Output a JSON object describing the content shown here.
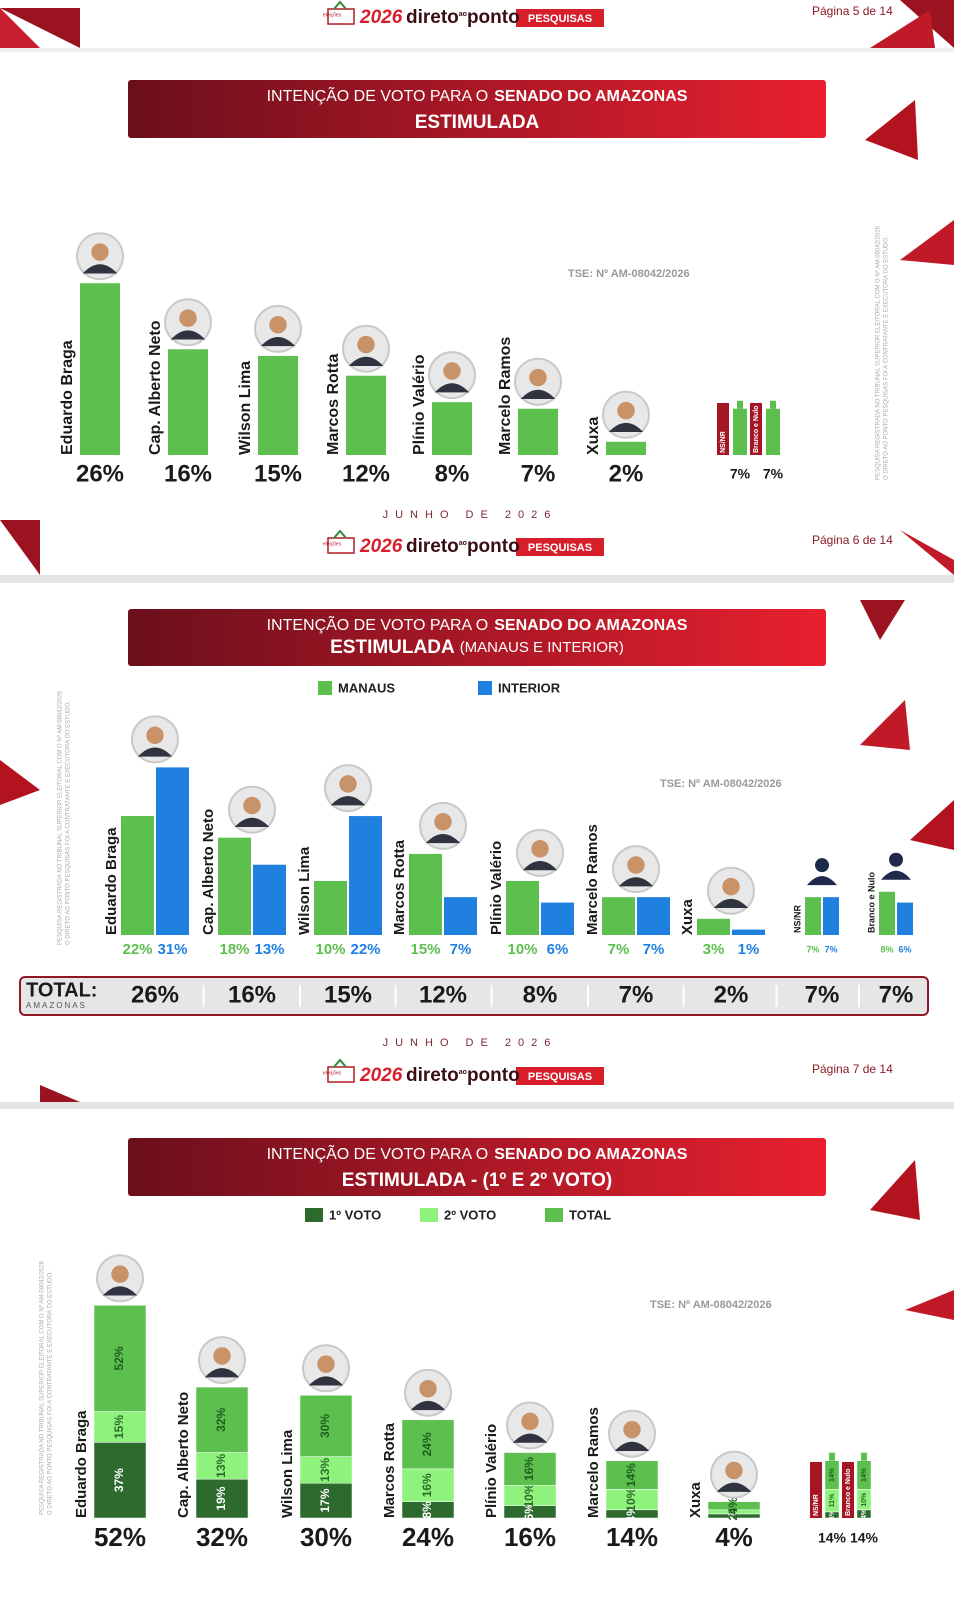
{
  "logo": {
    "badge": "eleições",
    "year": "2026",
    "name_a": "direto",
    "name_b": "ao",
    "name_c": "ponto",
    "tag": "PESQUISAS"
  },
  "page_labels": [
    "Página 5 de 14",
    "Página 6 de 14",
    "Página 7 de 14"
  ],
  "date": "JUNHO DE 2026",
  "registration": "TSE: Nº AM-08042/2026",
  "side_note": [
    "PESQUISA REGISTRADA NO TRIBUNAL SUPERIOR ELEITORAL COM O Nº AM-08042/2026",
    "O DIRETO AO PONTO PESQUISAS FOI A CONTRATANTE E EXECUTORA DO ESTUDO."
  ],
  "chart_data": [
    {
      "type": "bar",
      "title": {
        "lead": "INTENÇÃO DE VOTO PARA O",
        "bold": "SENADO DO AMAZONAS"
      },
      "subtitle": "ESTIMULADA",
      "categories": [
        "Eduardo Braga",
        "Cap. Alberto Neto",
        "Wilson Lima",
        "Marcos Rotta",
        "Plínio Valério",
        "Marcelo Ramos",
        "Xuxa",
        "NS/NR",
        "Branco e Nulo"
      ],
      "values": [
        26,
        16,
        15,
        12,
        8,
        7,
        2,
        7,
        7
      ],
      "value_labels": [
        "26%",
        "16%",
        "15%",
        "12%",
        "8%",
        "7%",
        "2%",
        "7%",
        "7%"
      ],
      "color": "#5cbf4e",
      "ylim": [
        0,
        28
      ]
    },
    {
      "type": "grouped_bar",
      "title": {
        "lead": "INTENÇÃO DE VOTO PARA O",
        "bold": "SENADO DO AMAZONAS"
      },
      "subtitle": "ESTIMULADA",
      "subtitle_note": "(MANAUS E INTERIOR)",
      "categories": [
        "Eduardo Braga",
        "Cap. Alberto Neto",
        "Wilson Lima",
        "Marcos Rotta",
        "Plínio Valério",
        "Marcelo Ramos",
        "Xuxa",
        "NS/NR",
        "Branco e Nulo"
      ],
      "series": [
        {
          "name": "MANAUS",
          "color": "#5cbf4e",
          "values": [
            22,
            18,
            10,
            15,
            10,
            7,
            3,
            7,
            8
          ],
          "value_labels": [
            "22%",
            "18%",
            "10%",
            "15%",
            "10%",
            "7%",
            "3%",
            "7%",
            "8%"
          ]
        },
        {
          "name": "INTERIOR",
          "color": "#1f80e0",
          "values": [
            31,
            13,
            22,
            7,
            6,
            7,
            1,
            7,
            6
          ],
          "value_labels": [
            "31%",
            "13%",
            "22%",
            "7%",
            "6%",
            "7%",
            "1%",
            "7%",
            "6%"
          ]
        }
      ],
      "total": {
        "label": "TOTAL:",
        "sublabel": "AMAZONAS",
        "values": [
          26,
          16,
          15,
          12,
          8,
          7,
          2,
          7,
          7
        ],
        "value_labels": [
          "26%",
          "16%",
          "15%",
          "12%",
          "8%",
          "7%",
          "2%",
          "7%",
          "7%"
        ]
      },
      "ylim": [
        0,
        32
      ]
    },
    {
      "type": "stacked_bar",
      "title": {
        "lead": "INTENÇÃO DE VOTO PARA O",
        "bold": "SENADO DO AMAZONAS"
      },
      "subtitle": "ESTIMULADA - (1º E 2º VOTO)",
      "categories": [
        "Eduardo Braga",
        "Cap. Alberto Neto",
        "Wilson Lima",
        "Marcos Rotta",
        "Plínio Valério",
        "Marcelo Ramos",
        "Xuxa",
        "NS/NR",
        "Branco e Nulo"
      ],
      "series": [
        {
          "name": "1º VOTO",
          "color": "#2d6a2d",
          "values": [
            37,
            19,
            17,
            8,
            6,
            4,
            2,
            3,
            4
          ],
          "value_labels": [
            "37%",
            "19%",
            "17%",
            "8%",
            "6%",
            "4%",
            "2%",
            "3%",
            "4%"
          ]
        },
        {
          "name": "2º VOTO",
          "color": "#8ef27c",
          "values": [
            15,
            13,
            13,
            16,
            10,
            10,
            2,
            11,
            10
          ],
          "value_labels": [
            "15%",
            "13%",
            "13%",
            "16%",
            "10%",
            "10%",
            "2%",
            "11%",
            "10%"
          ]
        },
        {
          "name": "TOTAL",
          "color": "#5cbf4e",
          "values": [
            52,
            32,
            30,
            24,
            16,
            14,
            4,
            14,
            14
          ],
          "value_labels": [
            "52%",
            "32%",
            "30%",
            "24%",
            "16%",
            "14%",
            "4%",
            "14%",
            "14%"
          ]
        }
      ],
      "ylim": [
        0,
        110
      ]
    }
  ]
}
